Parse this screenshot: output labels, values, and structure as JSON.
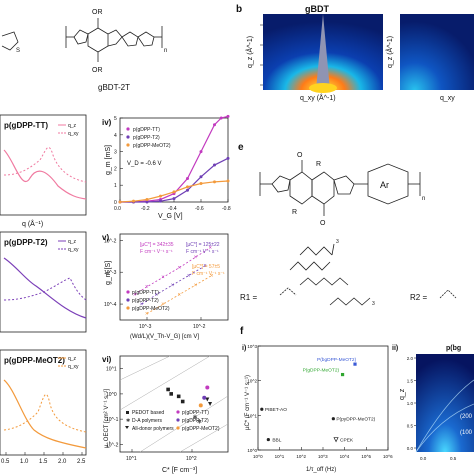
{
  "figure": {
    "panel_b_label": "b",
    "panel_b_title_left": "gBDT",
    "panel_e_label": "e",
    "panel_f_label": "f",
    "structure_top_label": "gBDT-2T",
    "or_top": "OR",
    "or_bottom": "OR",
    "n_sub_top": "n",
    "n_sub_e": "n",
    "r_labels": [
      "R",
      "R",
      "O",
      "O"
    ],
    "ar_label": "Ar",
    "r1_label": "R1 =",
    "r2_label": "R2 =",
    "sub3_a": "3",
    "sub3_b": "3"
  },
  "gixd": {
    "qz_label": "q_z (Å^-1)",
    "qxy_label": "q_xy (Å^-1)",
    "qxy_right": "q_xy"
  },
  "left_panels": [
    {
      "name": "p(gDPP-TT)",
      "legend": [
        "q_z",
        "q_xy"
      ],
      "xlabel": ""
    },
    {
      "name": "p(gDPP-T2)",
      "legend": [
        "q_z",
        "q_xy"
      ],
      "xlabel": ""
    },
    {
      "name": "p(gDPP-MeOT2)",
      "legend": [
        "q_z",
        "q_xy"
      ],
      "xlabel": "q (Å^-1)"
    }
  ],
  "left_xticks": [
    "0.5",
    "1.0",
    "1.5",
    "2.0",
    "2.5"
  ],
  "left_xlabel_top": "q (Å⁻¹)",
  "panel_iv": {
    "label": "iv)",
    "ylabel": "g_m [mS]",
    "xlabel": "V_G [V]",
    "annotation": "V_D = -0.6 V",
    "yticks": [
      "0",
      "1",
      "2",
      "3",
      "4",
      "5"
    ],
    "xticks": [
      "0.0",
      "-0.2",
      "-0.4",
      "-0.6",
      "-0.8"
    ],
    "legend": [
      "p(gDPP-TT)",
      "p(gDPP-T2)",
      "p(gDPP-MeOT2)"
    ]
  },
  "panel_v": {
    "label": "v)",
    "ylabel": "g_m [S]",
    "xlabel": "(Wd/L)(V_Th-V_G) [cm V]",
    "yticks": [
      "10^-2",
      "10^-3",
      "10^-4"
    ],
    "xticks": [
      "10^-3",
      "10^-2"
    ],
    "fit_tt": "[µC*] = 342±35",
    "fit_tt_units": "F cm⁻¹ V⁻¹ s⁻¹",
    "fit_t2": "[µC*] = 125±22",
    "fit_t2_units": "F cm⁻¹ V⁻¹ s⁻¹",
    "fit_meo": "[µC*] = 57±5",
    "fit_meo_units": "F cm⁻¹ V⁻¹ s⁻¹",
    "legend": [
      "p(gDPP-TT)",
      "p(gDPP-T2)",
      "p(gDPP-MeOT2)"
    ]
  },
  "panel_vi": {
    "label": "vi)",
    "ylabel": "µ_OECT [cm² V⁻¹ s⁻¹]",
    "xlabel": "C* [F cm⁻³]",
    "yticks": [
      "10^1",
      "10^0",
      "10^-1",
      "10^-2"
    ],
    "xticks": [
      "10^1",
      "10^2"
    ],
    "legend": [
      "PEDOT based",
      "D-A polymers",
      "All-donor polymers",
      "p(gDPP-TT)",
      "p(gDPP-T2)",
      "p(gDPP-MeOT2)"
    ]
  },
  "panel_fi": {
    "label": "i)",
    "ylabel": "µC* (F cm⁻¹ V⁻¹ s⁻¹)",
    "xlabel": "1/τ_off (Hz)",
    "yticks": [
      "10^3",
      "10^2",
      "10^1",
      "10^0"
    ],
    "xticks": [
      "10^0",
      "10^1",
      "10^2",
      "10^3",
      "10^4",
      "10^5",
      "10^6"
    ],
    "points": [
      "P(bgDPP-MeOT2)",
      "P(gDPP-MeOT2)",
      "PIBET-AO",
      "P(pyDPP-MeOT2)",
      "BBL",
      "CPEK"
    ]
  },
  "panel_fii": {
    "label": "ii)",
    "title": "p(bg",
    "ylabel": "q_z",
    "yticks": [
      "2.0",
      "1.5",
      "1.0",
      "0.5",
      "0.0"
    ],
    "peaks": [
      "(200",
      "(100"
    ],
    "xticks": [
      "0.0",
      "0.5"
    ]
  },
  "chart_data": [
    {
      "type": "line",
      "title": "iv)",
      "xlabel": "V_G [V]",
      "ylabel": "g_m [mS]",
      "xlim": [
        0.0,
        -0.8
      ],
      "ylim": [
        0,
        5
      ],
      "series": [
        {
          "name": "p(gDPP-TT)",
          "x": [
            0.0,
            -0.1,
            -0.2,
            -0.3,
            -0.4,
            -0.5,
            -0.6,
            -0.7,
            -0.75,
            -0.8
          ],
          "y": [
            0.0,
            0.0,
            0.05,
            0.15,
            0.5,
            1.4,
            3.0,
            4.6,
            5.0,
            5.1
          ]
        },
        {
          "name": "p(gDPP-T2)",
          "x": [
            0.0,
            -0.1,
            -0.2,
            -0.3,
            -0.4,
            -0.5,
            -0.6,
            -0.7,
            -0.8
          ],
          "y": [
            0.0,
            0.0,
            0.0,
            0.05,
            0.2,
            0.7,
            1.5,
            2.2,
            2.6
          ]
        },
        {
          "name": "p(gDPP-MeOT2)",
          "x": [
            0.0,
            -0.1,
            -0.2,
            -0.3,
            -0.4,
            -0.5,
            -0.6,
            -0.7,
            -0.8
          ],
          "y": [
            0.0,
            0.05,
            0.15,
            0.35,
            0.6,
            0.9,
            1.1,
            1.2,
            1.25
          ]
        }
      ]
    },
    {
      "type": "scatter",
      "title": "v)",
      "xlabel": "(Wd/L)(V_Th-V_G) [cm V]",
      "ylabel": "g_m [S]",
      "xscale": "log",
      "yscale": "log",
      "series": [
        {
          "name": "p(gDPP-TT)",
          "x": [
            0.0006,
            0.001,
            0.002,
            0.004,
            0.008,
            0.015
          ],
          "y": [
            0.0002,
            0.00035,
            0.0007,
            0.0014,
            0.003,
            0.006
          ]
        },
        {
          "name": "p(gDPP-T2)",
          "x": [
            0.0008,
            0.0015,
            0.003,
            0.006,
            0.012
          ],
          "y": [
            0.0001,
            0.0002,
            0.0004,
            0.0008,
            0.0016
          ]
        },
        {
          "name": "p(gDPP-MeOT2)",
          "x": [
            0.001,
            0.002,
            0.004,
            0.008,
            0.016
          ],
          "y": [
            5e-05,
            0.0001,
            0.0002,
            0.0004,
            0.0008
          ]
        }
      ]
    },
    {
      "type": "scatter",
      "title": "vi)",
      "xlabel": "C* [F cm⁻³]",
      "ylabel": "µ_OECT [cm² V⁻¹ s⁻¹]",
      "xscale": "log",
      "yscale": "log",
      "series": [
        {
          "name": "PEDOT based",
          "x": [
            40,
            45,
            60,
            70
          ],
          "y": [
            1.5,
            1.0,
            0.8,
            0.5
          ]
        },
        {
          "name": "D-A polymers",
          "x": [
            110,
            130
          ],
          "y": [
            0.12,
            0.08
          ]
        },
        {
          "name": "All-donor polymers",
          "x": [
            180,
            200
          ],
          "y": [
            0.6,
            0.4
          ]
        },
        {
          "name": "p(gDPP-TT)",
          "x": [
            180
          ],
          "y": [
            1.8
          ]
        },
        {
          "name": "p(gDPP-T2)",
          "x": [
            160
          ],
          "y": [
            0.7
          ]
        },
        {
          "name": "p(gDPP-MeOT2)",
          "x": [
            140
          ],
          "y": [
            0.35
          ]
        }
      ]
    },
    {
      "type": "scatter",
      "title": "i)",
      "xlabel": "1/τ_off (Hz)",
      "ylabel": "µC* (F cm⁻¹ V⁻¹ s⁻¹)",
      "xscale": "log",
      "yscale": "log",
      "series": [
        {
          "name": "P(bgDPP-MeOT2)",
          "x": [
            30000
          ],
          "y": [
            300
          ]
        },
        {
          "name": "P(gDPP-MeOT2)",
          "x": [
            8000
          ],
          "y": [
            150
          ]
        },
        {
          "name": "PIBET-AO",
          "x": [
            1.5
          ],
          "y": [
            15
          ]
        },
        {
          "name": "P(pyDPP-MeOT2)",
          "x": [
            3000
          ],
          "y": [
            8
          ]
        },
        {
          "name": "BBL",
          "x": [
            3
          ],
          "y": [
            2
          ]
        },
        {
          "name": "CPEK",
          "x": [
            4000
          ],
          "y": [
            2
          ]
        }
      ]
    }
  ]
}
